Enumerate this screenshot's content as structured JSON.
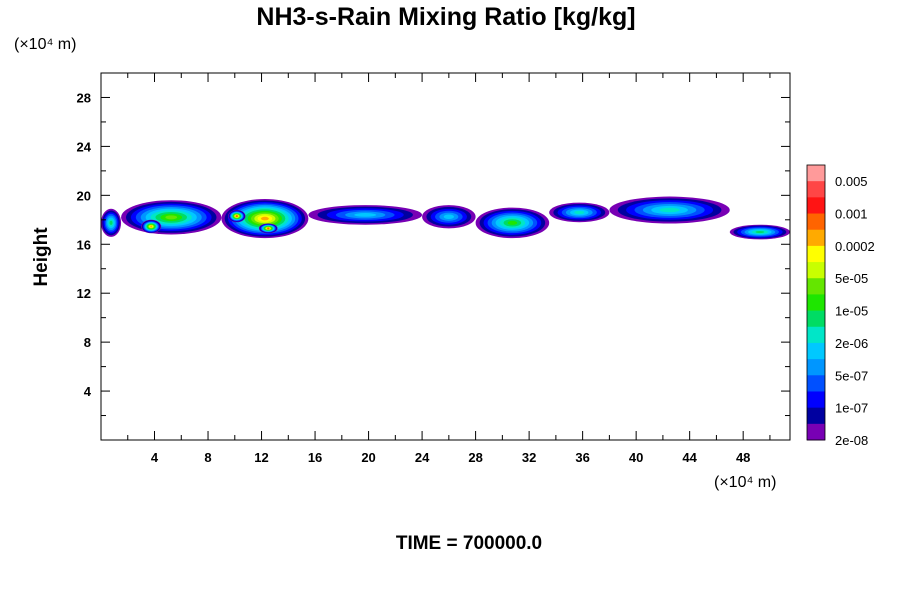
{
  "chart_data": {
    "type": "heatmap",
    "title": "NH3-s-Rain Mixing Ratio [kg/kg]",
    "xunit": "(×10⁴ m)",
    "yunit": "(×10⁴ m)",
    "ylabel": "Height",
    "footer": "TIME = 700000.0",
    "xlim": [
      0,
      51.5
    ],
    "ylim": [
      0,
      30
    ],
    "xticks": [
      4,
      8,
      12,
      16,
      20,
      24,
      28,
      32,
      36,
      40,
      44,
      48
    ],
    "yticks": [
      4,
      8,
      12,
      16,
      20,
      24,
      28
    ],
    "colorbar": {
      "labels": [
        "0.005",
        "0.001",
        "0.0002",
        "5e-05",
        "1e-05",
        "2e-06",
        "5e-07",
        "1e-07",
        "2e-08"
      ],
      "colors": [
        "#ff9a9a",
        "#ff4646",
        "#ff1414",
        "#ff6400",
        "#ffaa00",
        "#ffff00",
        "#c8ff00",
        "#64e600",
        "#1ee600",
        "#00dc64",
        "#00e6c8",
        "#00c8ff",
        "#0096ff",
        "#0050ff",
        "#0000ff",
        "#0000a0",
        "#7800b4"
      ]
    },
    "clouds": [
      {
        "x": [
          0.0,
          1.5
        ],
        "y": [
          16.6,
          18.9
        ],
        "level": 7
      },
      {
        "x": [
          1.5,
          9.0
        ],
        "y": [
          16.8,
          19.6
        ],
        "level": 9
      },
      {
        "x": [
          3.0,
          4.5
        ],
        "y": [
          16.9,
          18.0
        ],
        "level": 12
      },
      {
        "x": [
          9.0,
          15.5
        ],
        "y": [
          16.5,
          19.7
        ],
        "level": 12
      },
      {
        "x": [
          9.5,
          10.8
        ],
        "y": [
          17.8,
          18.8
        ],
        "level": 13
      },
      {
        "x": [
          11.8,
          13.2
        ],
        "y": [
          16.9,
          17.7
        ],
        "level": 13
      },
      {
        "x": [
          15.5,
          24.0
        ],
        "y": [
          17.6,
          19.2
        ],
        "level": 5
      },
      {
        "x": [
          24.0,
          28.0
        ],
        "y": [
          17.3,
          19.2
        ],
        "level": 5
      },
      {
        "x": [
          28.0,
          33.5
        ],
        "y": [
          16.5,
          19.0
        ],
        "level": 8
      },
      {
        "x": [
          33.5,
          38.0
        ],
        "y": [
          17.8,
          19.4
        ],
        "level": 6
      },
      {
        "x": [
          38.0,
          47.0
        ],
        "y": [
          17.7,
          19.9
        ],
        "level": 6
      },
      {
        "x": [
          47.0,
          51.5
        ],
        "y": [
          16.4,
          17.6
        ],
        "level": 7
      }
    ]
  }
}
